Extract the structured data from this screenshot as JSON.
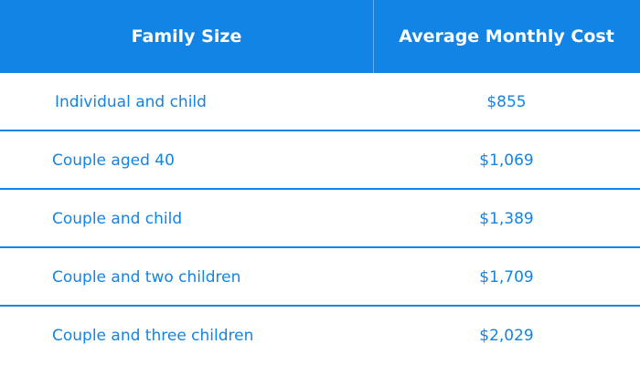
{
  "chart_data": {
    "type": "table",
    "columns": [
      "Family Size",
      "Average Monthly Cost"
    ],
    "rows": [
      {
        "family_size": "Individual and child",
        "cost": "$855"
      },
      {
        "family_size": "Couple aged 40",
        "cost": "$1,069"
      },
      {
        "family_size": "Couple and child",
        "cost": "$1,389"
      },
      {
        "family_size": "Couple and two children",
        "cost": "$1,709"
      },
      {
        "family_size": "Couple and three children",
        "cost": "$2,029"
      }
    ]
  },
  "colors": {
    "header_bg": "#1184e6",
    "header_text": "#ffffff",
    "body_text": "#1184e6",
    "separator": "#1184e6"
  }
}
